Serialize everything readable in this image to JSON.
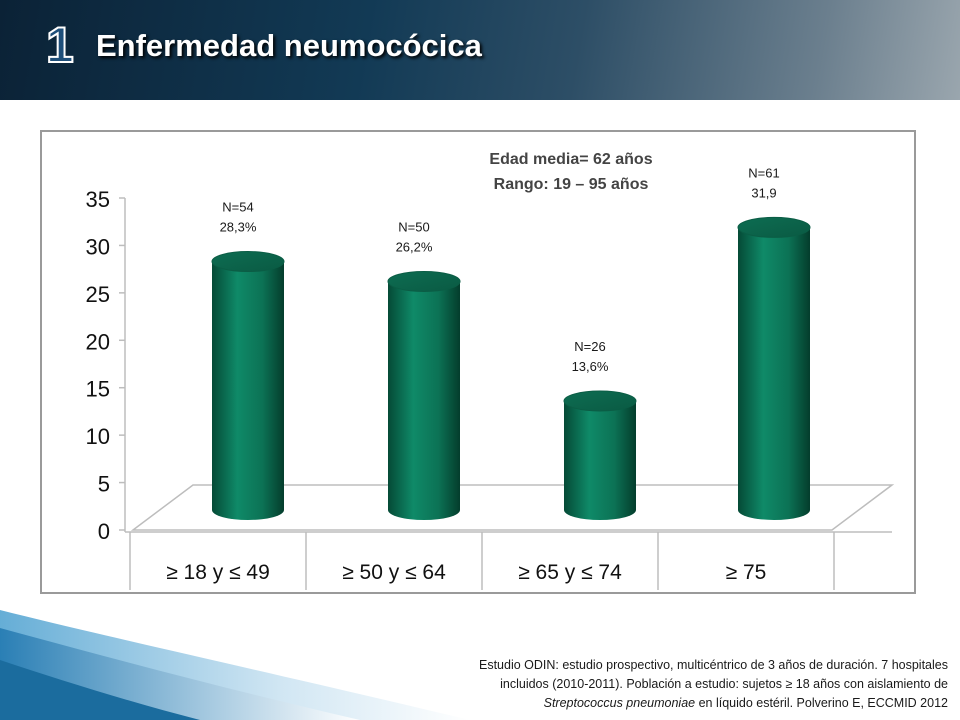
{
  "header": {
    "slide_number": "1",
    "title": "Enfermedad neumocócica"
  },
  "chart_data": {
    "type": "bar",
    "categories": [
      "≥ 18 y ≤ 49",
      "≥ 50 y ≤ 64",
      "≥ 65 y ≤ 74",
      "≥ 75"
    ],
    "values": [
      28.3,
      26.2,
      13.6,
      31.9
    ],
    "data_labels": [
      [
        "N=54",
        "28,3%"
      ],
      [
        "N=50",
        "26,2%"
      ],
      [
        "N=26",
        "13,6%"
      ],
      [
        "N=61",
        "31,9"
      ]
    ],
    "annotation": [
      "Edad media= 62 años",
      "Rango: 19 – 95 años"
    ],
    "ylim": [
      0,
      35
    ],
    "yticks": [
      0,
      5,
      10,
      15,
      20,
      25,
      30,
      35
    ],
    "grid": false,
    "bar_color": "#0e7a5e"
  },
  "footnote": {
    "line1": "Estudio ODIN: estudio prospectivo, multicéntrico de 3 años de duración. 7 hospitales",
    "line2": "incluidos (2010-2011). Población  a estudio: sujetos ≥ 18 años con aislamiento de",
    "line3_italic": "Streptococcus pneumoniae",
    "line3_rest": " en líquido estéril. Polverino E, ECCMID 2012"
  }
}
